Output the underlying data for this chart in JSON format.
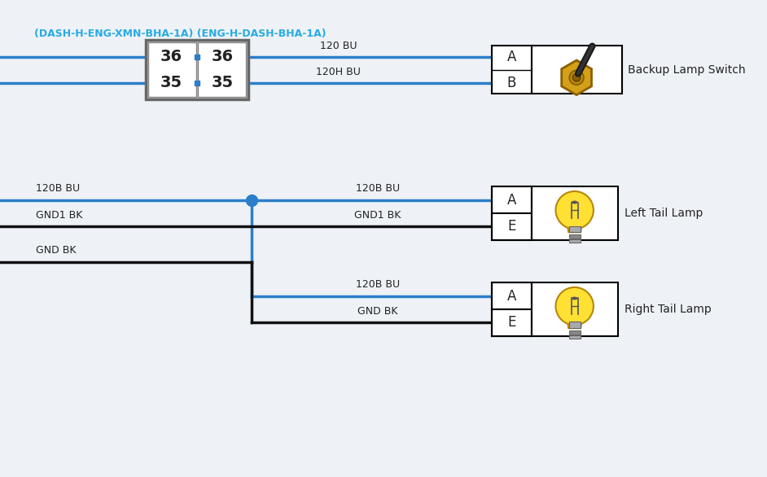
{
  "bg_color": "#eef2f6",
  "blue_wire": "#2b7ec9",
  "black_wire": "#111111",
  "title_color": "#29ABE2",
  "text_color": "#222222",
  "header_text": "(DASH-H-ENG-XMN-BHA-1A) (ENG-H-DASH-BHA-1A)",
  "pin_left_top": "36",
  "pin_left_bot": "35",
  "pin_right_top": "36",
  "pin_right_bot": "35",
  "wire1_label": "120 BU",
  "wire2_label": "120H BU",
  "backup_A": "A",
  "backup_B": "B",
  "backup_label": "Backup Lamp Switch",
  "left_A": "A",
  "left_E": "E",
  "left_label": "Left Tail Lamp",
  "right_A": "A",
  "right_E": "E",
  "right_label": "Right Tail Lamp",
  "w_120B_BU_left": "120B BU",
  "w_GND1_BK_left": "GND1 BK",
  "w_GND_BK_left": "GND BK",
  "w_120B_BU_mid1": "120B BU",
  "w_GND1_BK_mid": "GND1 BK",
  "w_120B_BU_mid2": "120B BU",
  "w_GND_BK_mid": "GND BK"
}
